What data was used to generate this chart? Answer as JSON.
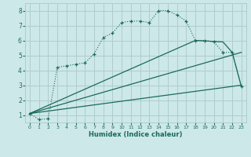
{
  "xlabel": "Humidex (Indice chaleur)",
  "bg_color": "#cde8e8",
  "grid_color": "#b0cccc",
  "line_color": "#1a6b5a",
  "xlim": [
    -0.5,
    23.5
  ],
  "ylim": [
    0.5,
    8.5
  ],
  "xticks": [
    0,
    1,
    2,
    3,
    4,
    5,
    6,
    7,
    8,
    9,
    10,
    11,
    12,
    13,
    14,
    15,
    16,
    17,
    18,
    19,
    20,
    21,
    22,
    23
  ],
  "yticks": [
    1,
    2,
    3,
    4,
    5,
    6,
    7,
    8
  ],
  "curve_x": [
    0,
    1,
    2,
    3,
    4,
    5,
    6,
    7,
    8,
    9,
    10,
    11,
    12,
    13,
    14,
    15,
    16,
    17,
    18,
    19,
    20,
    21,
    22,
    23
  ],
  "curve_y": [
    1.1,
    0.7,
    0.75,
    4.2,
    4.3,
    4.4,
    4.5,
    5.1,
    6.2,
    6.5,
    7.2,
    7.3,
    7.3,
    7.2,
    8.0,
    8.0,
    7.7,
    7.3,
    6.0,
    6.0,
    5.9,
    5.2,
    5.2,
    2.9
  ],
  "line1_x": [
    0,
    18,
    21,
    22,
    23
  ],
  "line1_y": [
    1.1,
    6.0,
    5.9,
    5.2,
    2.9
  ],
  "line2_x": [
    0,
    23
  ],
  "line2_y": [
    1.1,
    3.0
  ],
  "line3_x": [
    0,
    23
  ],
  "line3_y": [
    1.1,
    5.2
  ]
}
